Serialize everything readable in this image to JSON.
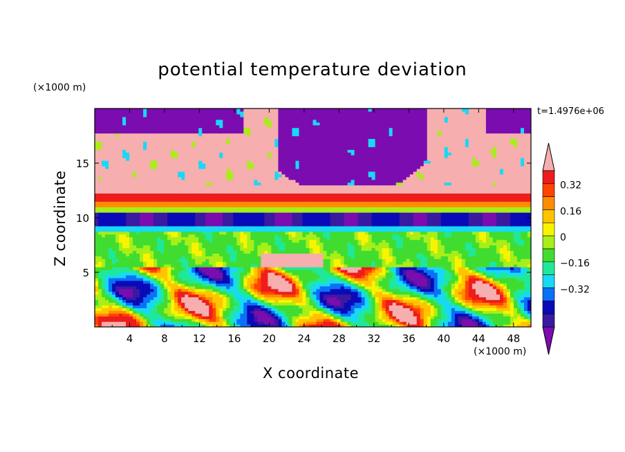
{
  "chart_data": {
    "type": "heatmap",
    "title": "potential temperature deviation",
    "xlabel": "X coordinate",
    "ylabel": "Z coordinate",
    "x_unit": "(×1000 m)",
    "y_unit": "(×1000 m)",
    "time_label": "t=1.4976e+06",
    "xlim": [
      0,
      50
    ],
    "ylim": [
      0,
      20
    ],
    "x_ticks": [
      "4",
      "8",
      "12",
      "16",
      "20",
      "24",
      "28",
      "32",
      "36",
      "40",
      "44",
      "48"
    ],
    "y_ticks": [
      "5",
      "10",
      "15"
    ],
    "colorbar": {
      "labels": [
        "0.32",
        "0.16",
        "0",
        "−0.16",
        "−0.32"
      ],
      "colors": [
        "#7a0cb0",
        "#3a1aa0",
        "#0a0ab8",
        "#0a70f5",
        "#18d8f8",
        "#20e89a",
        "#40dd30",
        "#a8ee18",
        "#f8f400",
        "#ffc400",
        "#ff8c00",
        "#ff4400",
        "#ee1c1c",
        "#f6aeae"
      ],
      "levels": [
        -0.4,
        -0.36,
        -0.28,
        -0.2,
        -0.12,
        -0.04,
        0.04,
        0.08,
        0.12,
        0.2,
        0.24,
        0.28,
        0.36
      ],
      "extend": "both"
    },
    "regions": [
      {
        "z_range": [
          0,
          5.5
        ],
        "description_value": "mixed",
        "values": "alternating plumes between -0.4 and 0.4"
      },
      {
        "z_range": [
          5.5,
          9.5
        ],
        "values": "near 0 to 0.08"
      },
      {
        "z_range": [
          9.5,
          10.5
        ],
        "values": "-0.36"
      },
      {
        "z_range": [
          10.5,
          13
        ],
        "values": "0.16 to 0.36"
      },
      {
        "z_range": [
          13,
          20
        ],
        "values": "above 0.36 and below -0.4 patches"
      }
    ]
  }
}
